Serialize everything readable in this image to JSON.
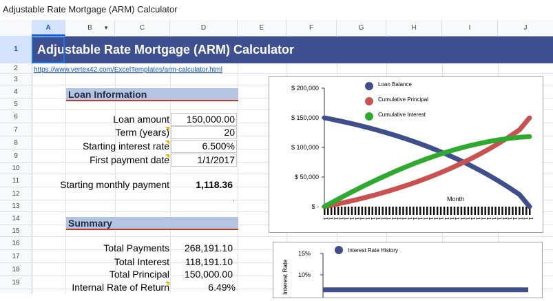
{
  "app": {
    "title": "Adjustable Rate Mortgage (ARM) Calculator"
  },
  "columns": [
    "A",
    "B",
    "C",
    "D",
    "E",
    "F",
    "G",
    "H",
    "I",
    "J"
  ],
  "rows": [
    "1",
    "2",
    "3",
    "4",
    "5",
    "6",
    "7",
    "8",
    "9",
    "10",
    "11",
    "12",
    "13",
    "14",
    "15",
    "16",
    "17",
    "18",
    "19"
  ],
  "sheet": {
    "banner_title": "Adjustable Rate Mortgage (ARM) Calculator",
    "link": "https://www.vertex42.com/ExcelTemplates/arm-calculator.html",
    "loan_info": {
      "header": "Loan Information",
      "loan_amount_label": "Loan amount",
      "loan_amount": "150,000.00",
      "term_label": "Term (years)",
      "term": "20",
      "rate_label": "Starting interest rate",
      "rate": "6.500%",
      "first_payment_label": "First payment date",
      "first_payment": "1/1/2017",
      "monthly_label": "Starting monthly payment",
      "monthly": "1,118.36",
      "dot": "."
    },
    "summary": {
      "header": "Summary",
      "total_payments_label": "Total Payments",
      "total_payments": "268,191.10",
      "total_interest_label": "Total Interest",
      "total_interest": "118,191.10",
      "total_principal_label": "Total Principal",
      "total_principal": "150,000.00",
      "irr_label": "Internal Rate of Return",
      "irr": "6.49%"
    }
  },
  "chart_data": [
    {
      "type": "line",
      "xlabel": "Month",
      "ylim": [
        0,
        200000
      ],
      "y_ticks": [
        "$ 200,000",
        "$ 150,000",
        "$ 100,000",
        "$ 50,000",
        "$ -"
      ],
      "legend_position": "top",
      "x_tick_label": "1",
      "x": [
        0,
        1,
        2,
        3,
        4,
        5,
        6,
        7,
        8,
        9,
        10,
        11,
        12,
        13,
        14,
        15,
        16,
        17,
        18,
        19,
        20
      ],
      "series": [
        {
          "name": "Loan Balance",
          "color": "#3f4f8c",
          "values": [
            150000,
            146500,
            142800,
            138800,
            134500,
            129900,
            125000,
            119800,
            114200,
            108200,
            101800,
            95000,
            87700,
            79900,
            71600,
            62700,
            53200,
            43000,
            32200,
            20600,
            0
          ]
        },
        {
          "name": "Cumulative Principal",
          "color": "#c9514f",
          "values": [
            0,
            3500,
            7200,
            11200,
            15500,
            20100,
            25000,
            30200,
            35800,
            41800,
            48200,
            55000,
            62300,
            70100,
            78400,
            87300,
            96800,
            107000,
            117800,
            129400,
            150000
          ]
        },
        {
          "name": "Cumulative Interest",
          "color": "#2eab2e",
          "values": [
            0,
            9500,
            18700,
            27600,
            36300,
            44600,
            52600,
            60200,
            67500,
            74400,
            80900,
            86900,
            92500,
            97600,
            102200,
            106200,
            109800,
            112800,
            115200,
            117100,
            118191
          ]
        }
      ]
    },
    {
      "type": "line",
      "ylabel": "Interest Rate",
      "y_ticks": [
        "15%",
        "10%"
      ],
      "legend_position": "top",
      "series": [
        {
          "name": "Interest Rate History",
          "color": "#3f4f8c",
          "values": [
            6.5,
            6.5
          ]
        }
      ]
    }
  ]
}
